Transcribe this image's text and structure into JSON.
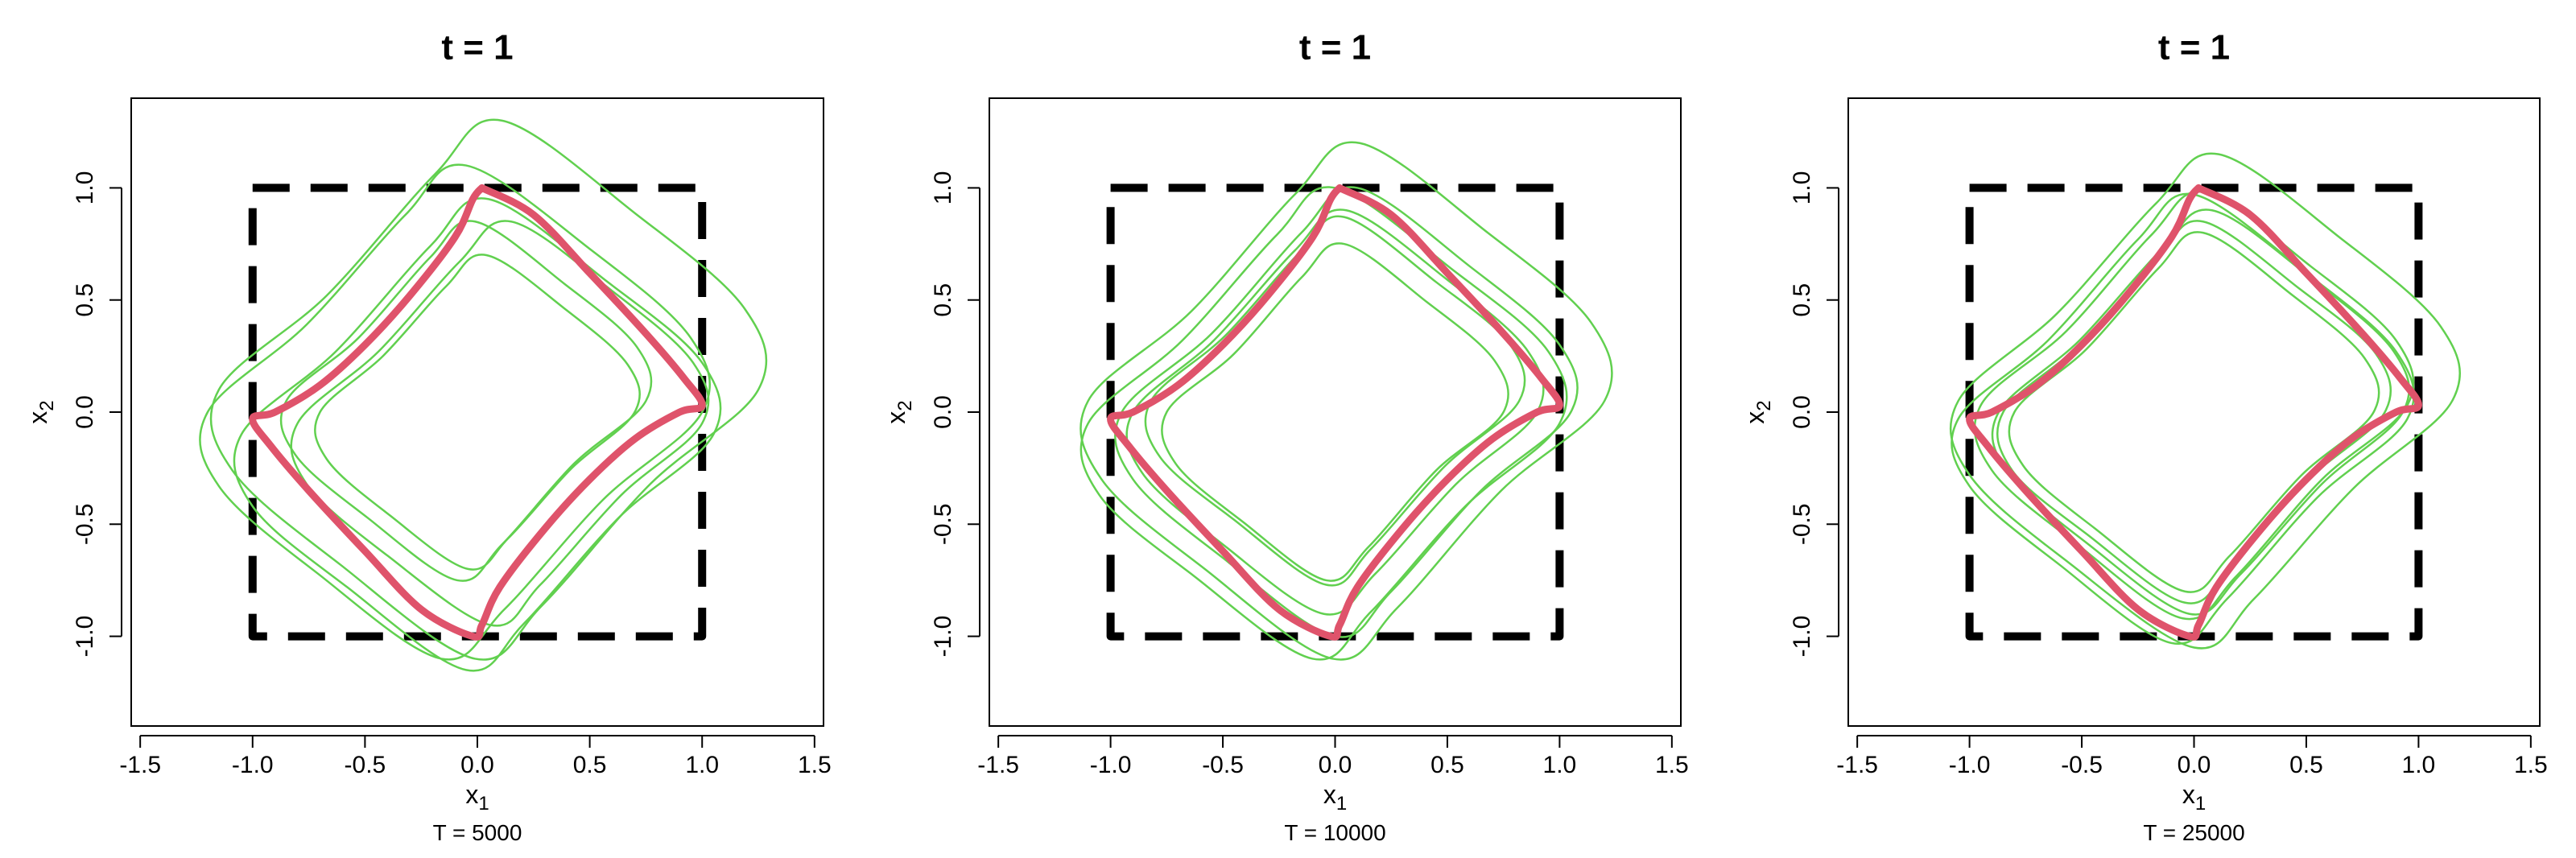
{
  "chart_data": [
    {
      "type": "line",
      "title": "t = 1",
      "subtitle": "T = 5000",
      "x_label": {
        "text": "x",
        "subscript": "1"
      },
      "y_label": {
        "text": "x",
        "subscript": "2"
      },
      "xlim": [
        -1.54,
        1.54
      ],
      "ylim": [
        -1.4,
        1.4
      ],
      "xticks": [
        {
          "value": -1.5,
          "label": "-1.5"
        },
        {
          "value": -1,
          "label": "-1.0"
        },
        {
          "value": -0.5,
          "label": "-0.5"
        },
        {
          "value": 0,
          "label": "0.0"
        },
        {
          "value": 0.5,
          "label": "0.5"
        },
        {
          "value": 1,
          "label": "1.0"
        },
        {
          "value": 1.5,
          "label": "1.5"
        }
      ],
      "yticks": [
        {
          "value": -1,
          "label": "-1.0"
        },
        {
          "value": -0.5,
          "label": "-0.5"
        },
        {
          "value": 0,
          "label": "0.0"
        },
        {
          "value": 0.5,
          "label": "0.5"
        },
        {
          "value": 1,
          "label": "1.0"
        }
      ],
      "series": [
        {
          "color": "#000000",
          "linestyle": "dashed",
          "x": [
            -1,
            1,
            1,
            -1,
            -1
          ],
          "y": [
            1,
            1,
            -1,
            -1,
            1
          ]
        },
        {
          "color": "#61D04F",
          "closed": true,
          "x": [
            0.11,
            0.71,
            1.19,
            1.25,
            0.77,
            0.29,
            -0.01,
            -0.61,
            -1.09,
            -1.15,
            -0.67,
            -0.19
          ],
          "y": [
            1.3,
            0.88,
            0.46,
            0.1,
            -0.32,
            -0.86,
            -1.1,
            -0.68,
            -0.26,
            0.1,
            0.52,
            1.06
          ]
        },
        {
          "color": "#61D04F",
          "closed": true,
          "x": [
            0.04,
            0.39,
            0.67,
            0.7,
            0.42,
            0.14,
            -0.04,
            -0.39,
            -0.67,
            -0.7,
            -0.42,
            -0.14
          ],
          "y": [
            0.7,
            0.46,
            0.21,
            0,
            -0.25,
            -0.56,
            -0.7,
            -0.46,
            -0.21,
            0,
            0.25,
            0.56
          ]
        },
        {
          "color": "#61D04F",
          "closed": true,
          "x": [
            -0.05,
            0.51,
            0.95,
            1.0,
            0.56,
            0.12,
            -0.16,
            -0.71,
            -1.15,
            -1.2,
            -0.76,
            -0.32
          ],
          "y": [
            1.1,
            0.72,
            0.33,
            0,
            -0.39,
            -0.88,
            -1.1,
            -0.72,
            -0.33,
            0,
            0.39,
            0.88
          ]
        },
        {
          "color": "#61D04F",
          "closed": true,
          "x": [
            0.15,
            0.6,
            0.96,
            1.0,
            0.64,
            0.28,
            0.06,
            -0.4,
            -0.76,
            -0.8,
            -0.44,
            -0.08
          ],
          "y": [
            0.85,
            0.54,
            0.22,
            -0.05,
            -0.37,
            -0.77,
            -0.95,
            -0.64,
            -0.32,
            -0.05,
            0.27,
            0.67
          ]
        },
        {
          "color": "#61D04F",
          "closed": true,
          "x": [
            0.05,
            0.58,
            1.0,
            1.05,
            0.63,
            0.21,
            -0.05,
            -0.58,
            -1.0,
            -1.05,
            -0.63,
            -0.21
          ],
          "y": [
            0.95,
            0.58,
            0.22,
            -0.1,
            -0.47,
            -0.94,
            -1.15,
            -0.78,
            -0.42,
            -0.1,
            0.27,
            0.74
          ]
        },
        {
          "color": "#61D04F",
          "closed": true,
          "x": [
            -0.01,
            0.39,
            0.71,
            0.75,
            0.43,
            0.11,
            -0.09,
            -0.49,
            -0.81,
            -0.85,
            -0.53,
            -0.21
          ],
          "y": [
            0.85,
            0.57,
            0.29,
            0.05,
            -0.23,
            -0.59,
            -0.75,
            -0.47,
            -0.19,
            0.05,
            0.33,
            0.69
          ]
        },
        {
          "color": "#DF536B",
          "x": [
            0.02,
            0.25,
            0.5,
            0.75,
            0.92,
            1.0,
            0.9,
            0.7,
            0.5,
            0.3,
            0.1,
            0.02,
            -0.02,
            -0.25,
            -0.5,
            -0.75,
            -0.92,
            -1.0,
            -0.9,
            -0.7,
            -0.5,
            -0.3,
            -0.1,
            -0.02,
            0.02
          ],
          "y": [
            1.0,
            0.88,
            0.62,
            0.35,
            0.15,
            0.03,
            0.0,
            -0.12,
            -0.3,
            -0.52,
            -0.78,
            -0.95,
            -1.0,
            -0.88,
            -0.62,
            -0.35,
            -0.15,
            -0.03,
            0.0,
            0.12,
            0.3,
            0.52,
            0.78,
            0.95,
            1.0
          ]
        }
      ]
    },
    {
      "type": "line",
      "title": "t = 1",
      "subtitle": "T = 10000",
      "x_label": {
        "text": "x",
        "subscript": "1"
      },
      "y_label": {
        "text": "x",
        "subscript": "2"
      },
      "xlim": [
        -1.54,
        1.54
      ],
      "ylim": [
        -1.4,
        1.4
      ],
      "xticks": [
        {
          "value": -1.5,
          "label": "-1.5"
        },
        {
          "value": -1,
          "label": "-1.0"
        },
        {
          "value": -0.5,
          "label": "-0.5"
        },
        {
          "value": 0,
          "label": "0.0"
        },
        {
          "value": 0.5,
          "label": "0.5"
        },
        {
          "value": 1,
          "label": "1.0"
        },
        {
          "value": 1.5,
          "label": "1.5"
        }
      ],
      "yticks": [
        {
          "value": -1,
          "label": "-1.0"
        },
        {
          "value": -0.5,
          "label": "-0.5"
        },
        {
          "value": 0,
          "label": "0.0"
        },
        {
          "value": 0.5,
          "label": "0.5"
        },
        {
          "value": 1,
          "label": "1.0"
        }
      ],
      "series": [
        {
          "color": "#000000",
          "linestyle": "dashed",
          "x": [
            -1,
            1,
            1,
            -1,
            -1
          ],
          "y": [
            1,
            1,
            -1,
            -1,
            1
          ]
        },
        {
          "color": "#61D04F",
          "closed": true,
          "x": [
            0.11,
            0.68,
            1.14,
            1.2,
            0.74,
            0.28,
            -0.01,
            -0.58,
            -1.04,
            -1.1,
            -0.64,
            -0.18
          ],
          "y": [
            1.2,
            0.8,
            0.4,
            0.05,
            -0.35,
            -0.87,
            -1.1,
            -0.7,
            -0.3,
            0.05,
            0.45,
            0.97
          ]
        },
        {
          "color": "#61D04F",
          "closed": true,
          "x": [
            0.04,
            0.41,
            0.71,
            0.75,
            0.45,
            0.15,
            -0.04,
            -0.41,
            -0.71,
            -0.75,
            -0.45,
            -0.15
          ],
          "y": [
            0.75,
            0.49,
            0.23,
            0,
            -0.26,
            -0.6,
            -0.75,
            -0.49,
            -0.23,
            0,
            0.26,
            0.6
          ]
        },
        {
          "color": "#61D04F",
          "closed": true,
          "x": [
            0.0,
            0.53,
            0.95,
            1.0,
            0.58,
            0.16,
            -0.1,
            -0.63,
            -1.05,
            -1.1,
            -0.68,
            -0.26
          ],
          "y": [
            1.0,
            0.63,
            0.27,
            -0.05,
            -0.42,
            -0.89,
            -1.1,
            -0.73,
            -0.37,
            -0.05,
            0.32,
            0.79
          ]
        },
        {
          "color": "#61D04F",
          "closed": true,
          "x": [
            0.05,
            0.5,
            0.86,
            0.9,
            0.54,
            0.18,
            -0.05,
            -0.5,
            -0.86,
            -0.9,
            -0.54,
            -0.18
          ],
          "y": [
            0.9,
            0.59,
            0.27,
            0,
            -0.32,
            -0.72,
            -0.9,
            -0.59,
            -0.27,
            0,
            0.32,
            0.72
          ]
        },
        {
          "color": "#61D04F",
          "closed": true,
          "x": [
            0.1,
            0.6,
            1.0,
            1.05,
            0.65,
            0.25,
            0.0,
            -0.5,
            -0.9,
            -0.95,
            -0.55,
            -0.15
          ],
          "y": [
            1.0,
            0.65,
            0.3,
            0,
            -0.35,
            -0.8,
            -1.0,
            -0.65,
            -0.3,
            0,
            0.35,
            0.8
          ]
        },
        {
          "color": "#61D04F",
          "closed": true,
          "x": [
            0.04,
            0.45,
            0.78,
            0.82,
            0.49,
            0.16,
            -0.04,
            -0.45,
            -0.78,
            -0.82,
            -0.49,
            -0.16
          ],
          "y": [
            0.87,
            0.58,
            0.3,
            0.05,
            -0.24,
            -0.61,
            -0.77,
            -0.48,
            -0.2,
            0.05,
            0.34,
            0.71
          ]
        },
        {
          "color": "#DF536B",
          "x": [
            0.02,
            0.25,
            0.5,
            0.75,
            0.92,
            1.0,
            0.9,
            0.7,
            0.5,
            0.3,
            0.1,
            0.02,
            -0.02,
            -0.25,
            -0.5,
            -0.75,
            -0.92,
            -1.0,
            -0.9,
            -0.7,
            -0.5,
            -0.3,
            -0.1,
            -0.02,
            0.02
          ],
          "y": [
            1.0,
            0.88,
            0.62,
            0.35,
            0.15,
            0.03,
            0.0,
            -0.12,
            -0.3,
            -0.52,
            -0.78,
            -0.95,
            -1.0,
            -0.88,
            -0.62,
            -0.35,
            -0.15,
            -0.03,
            0.0,
            0.12,
            0.3,
            0.52,
            0.78,
            0.95,
            1.0
          ]
        }
      ]
    },
    {
      "type": "line",
      "title": "t = 1",
      "subtitle": "T = 25000",
      "x_label": {
        "text": "x",
        "subscript": "1"
      },
      "y_label": {
        "text": "x",
        "subscript": "2"
      },
      "xlim": [
        -1.54,
        1.54
      ],
      "ylim": [
        -1.4,
        1.4
      ],
      "xticks": [
        {
          "value": -1.5,
          "label": "-1.5"
        },
        {
          "value": -1,
          "label": "-1.0"
        },
        {
          "value": -0.5,
          "label": "-0.5"
        },
        {
          "value": 0,
          "label": "0.0"
        },
        {
          "value": 0.5,
          "label": "0.5"
        },
        {
          "value": 1,
          "label": "1.0"
        },
        {
          "value": 1.5,
          "label": "1.5"
        }
      ],
      "yticks": [
        {
          "value": -1,
          "label": "-1.0"
        },
        {
          "value": -0.5,
          "label": "-0.5"
        },
        {
          "value": 0,
          "label": "0.0"
        },
        {
          "value": 0.5,
          "label": "0.5"
        },
        {
          "value": 1,
          "label": "1.0"
        }
      ],
      "series": [
        {
          "color": "#000000",
          "linestyle": "dashed",
          "x": [
            -1,
            1,
            1,
            -1,
            -1
          ],
          "y": [
            1,
            1,
            -1,
            -1,
            1
          ]
        },
        {
          "color": "#61D04F",
          "closed": true,
          "x": [
            0.11,
            0.66,
            1.1,
            1.15,
            0.71,
            0.27,
            0.0,
            -0.56,
            -1.0,
            -1.05,
            -0.61,
            -0.17
          ],
          "y": [
            1.15,
            0.77,
            0.38,
            0.05,
            -0.34,
            -0.83,
            -1.05,
            -0.67,
            -0.28,
            0.05,
            0.44,
            0.93
          ]
        },
        {
          "color": "#61D04F",
          "closed": true,
          "x": [
            0.04,
            0.44,
            0.76,
            0.8,
            0.48,
            0.16,
            -0.04,
            -0.44,
            -0.76,
            -0.8,
            -0.48,
            -0.16
          ],
          "y": [
            0.8,
            0.52,
            0.24,
            0,
            -0.28,
            -0.64,
            -0.8,
            -0.52,
            -0.24,
            0,
            0.28,
            0.64
          ]
        },
        {
          "color": "#61D04F",
          "closed": true,
          "x": [
            0.0,
            0.5,
            0.9,
            0.95,
            0.55,
            0.15,
            -0.1,
            -0.6,
            -1.0,
            -1.05,
            -0.65,
            -0.25
          ],
          "y": [
            0.97,
            0.62,
            0.27,
            -0.03,
            -0.38,
            -0.83,
            -1.03,
            -0.68,
            -0.33,
            -0.03,
            0.32,
            0.77
          ]
        },
        {
          "color": "#61D04F",
          "closed": true,
          "x": [
            0.08,
            0.53,
            0.89,
            0.93,
            0.57,
            0.21,
            -0.02,
            -0.47,
            -0.83,
            -0.87,
            -0.51,
            -0.15
          ],
          "y": [
            0.9,
            0.59,
            0.27,
            0,
            -0.32,
            -0.72,
            -0.9,
            -0.59,
            -0.27,
            0,
            0.32,
            0.72
          ]
        },
        {
          "color": "#61D04F",
          "closed": true,
          "x": [
            0.05,
            0.52,
            0.9,
            0.95,
            0.57,
            0.19,
            -0.05,
            -0.52,
            -0.9,
            -0.95,
            -0.57,
            -0.19
          ],
          "y": [
            0.98,
            0.65,
            0.32,
            0.03,
            -0.3,
            -0.73,
            -0.92,
            -0.59,
            -0.26,
            0.03,
            0.36,
            0.79
          ]
        },
        {
          "color": "#61D04F",
          "closed": true,
          "x": [
            0.04,
            0.47,
            0.81,
            0.85,
            0.51,
            0.17,
            -0.04,
            -0.47,
            -0.81,
            -0.85,
            -0.51,
            -0.17
          ],
          "y": [
            0.85,
            0.55,
            0.26,
            0,
            -0.3,
            -0.68,
            -0.85,
            -0.55,
            -0.26,
            0,
            0.3,
            0.68
          ]
        },
        {
          "color": "#DF536B",
          "x": [
            0.02,
            0.25,
            0.5,
            0.75,
            0.92,
            1.0,
            0.9,
            0.7,
            0.5,
            0.3,
            0.1,
            0.02,
            -0.02,
            -0.25,
            -0.5,
            -0.75,
            -0.92,
            -1.0,
            -0.9,
            -0.7,
            -0.5,
            -0.3,
            -0.1,
            -0.02,
            0.02
          ],
          "y": [
            1.0,
            0.88,
            0.62,
            0.35,
            0.15,
            0.03,
            0.0,
            -0.12,
            -0.3,
            -0.52,
            -0.78,
            -0.95,
            -1.0,
            -0.88,
            -0.62,
            -0.35,
            -0.15,
            -0.03,
            0.0,
            0.12,
            0.3,
            0.52,
            0.78,
            0.95,
            1.0
          ]
        }
      ]
    }
  ]
}
